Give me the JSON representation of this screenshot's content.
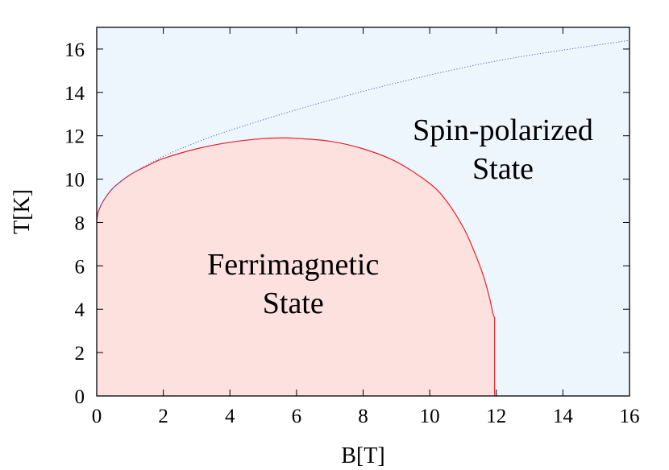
{
  "chart_data": {
    "type": "area",
    "title": "",
    "xlabel": "B[T]",
    "ylabel": "T[K]",
    "xlim": [
      0,
      16
    ],
    "ylim": [
      0,
      17
    ],
    "xticks": [
      "0",
      "2",
      "4",
      "6",
      "8",
      "10",
      "12",
      "14",
      "16"
    ],
    "yticks": [
      "0",
      "2",
      "4",
      "6",
      "8",
      "10",
      "12",
      "14",
      "16"
    ],
    "grid": false,
    "legend": "none",
    "series": [
      {
        "style": "solid-boundary-filled",
        "x": [
          0,
          0.05,
          0.2,
          0.5,
          1,
          1.5,
          2,
          3,
          4,
          5,
          5.6,
          6,
          7,
          8,
          9,
          10,
          10.5,
          11,
          11.3,
          11.6,
          11.8,
          11.9,
          11.95,
          11.95
        ],
        "y": [
          8.1,
          8.5,
          9.0,
          9.6,
          10.2,
          10.6,
          10.95,
          11.4,
          11.7,
          11.87,
          11.9,
          11.88,
          11.75,
          11.4,
          10.8,
          9.8,
          9.0,
          7.8,
          6.8,
          5.6,
          4.5,
          3.8,
          3.6,
          0
        ]
      },
      {
        "style": "dotted-boundary",
        "x": [
          0,
          0.05,
          0.2,
          0.5,
          1,
          2,
          3,
          4,
          6,
          8,
          10,
          12,
          14,
          16
        ],
        "y": [
          8.1,
          8.5,
          9.0,
          9.6,
          10.2,
          11.05,
          11.7,
          12.25,
          13.2,
          14.05,
          14.8,
          15.45,
          15.95,
          16.4
        ]
      }
    ],
    "annotations": [
      {
        "text": [
          "Ferrimagnetic",
          "State"
        ],
        "x": 5.9,
        "y": 5.6
      },
      {
        "text": [
          "Spin-polarized",
          "State"
        ],
        "x": 12.2,
        "y": 11.8
      }
    ],
    "colors": {
      "background_region": "#eef6fd",
      "ferrimagnetic_fill": "#fde1df",
      "ferrimagnetic_line": "#e8202a",
      "dotted_line": "#5560c8",
      "axis": "#000000"
    }
  }
}
